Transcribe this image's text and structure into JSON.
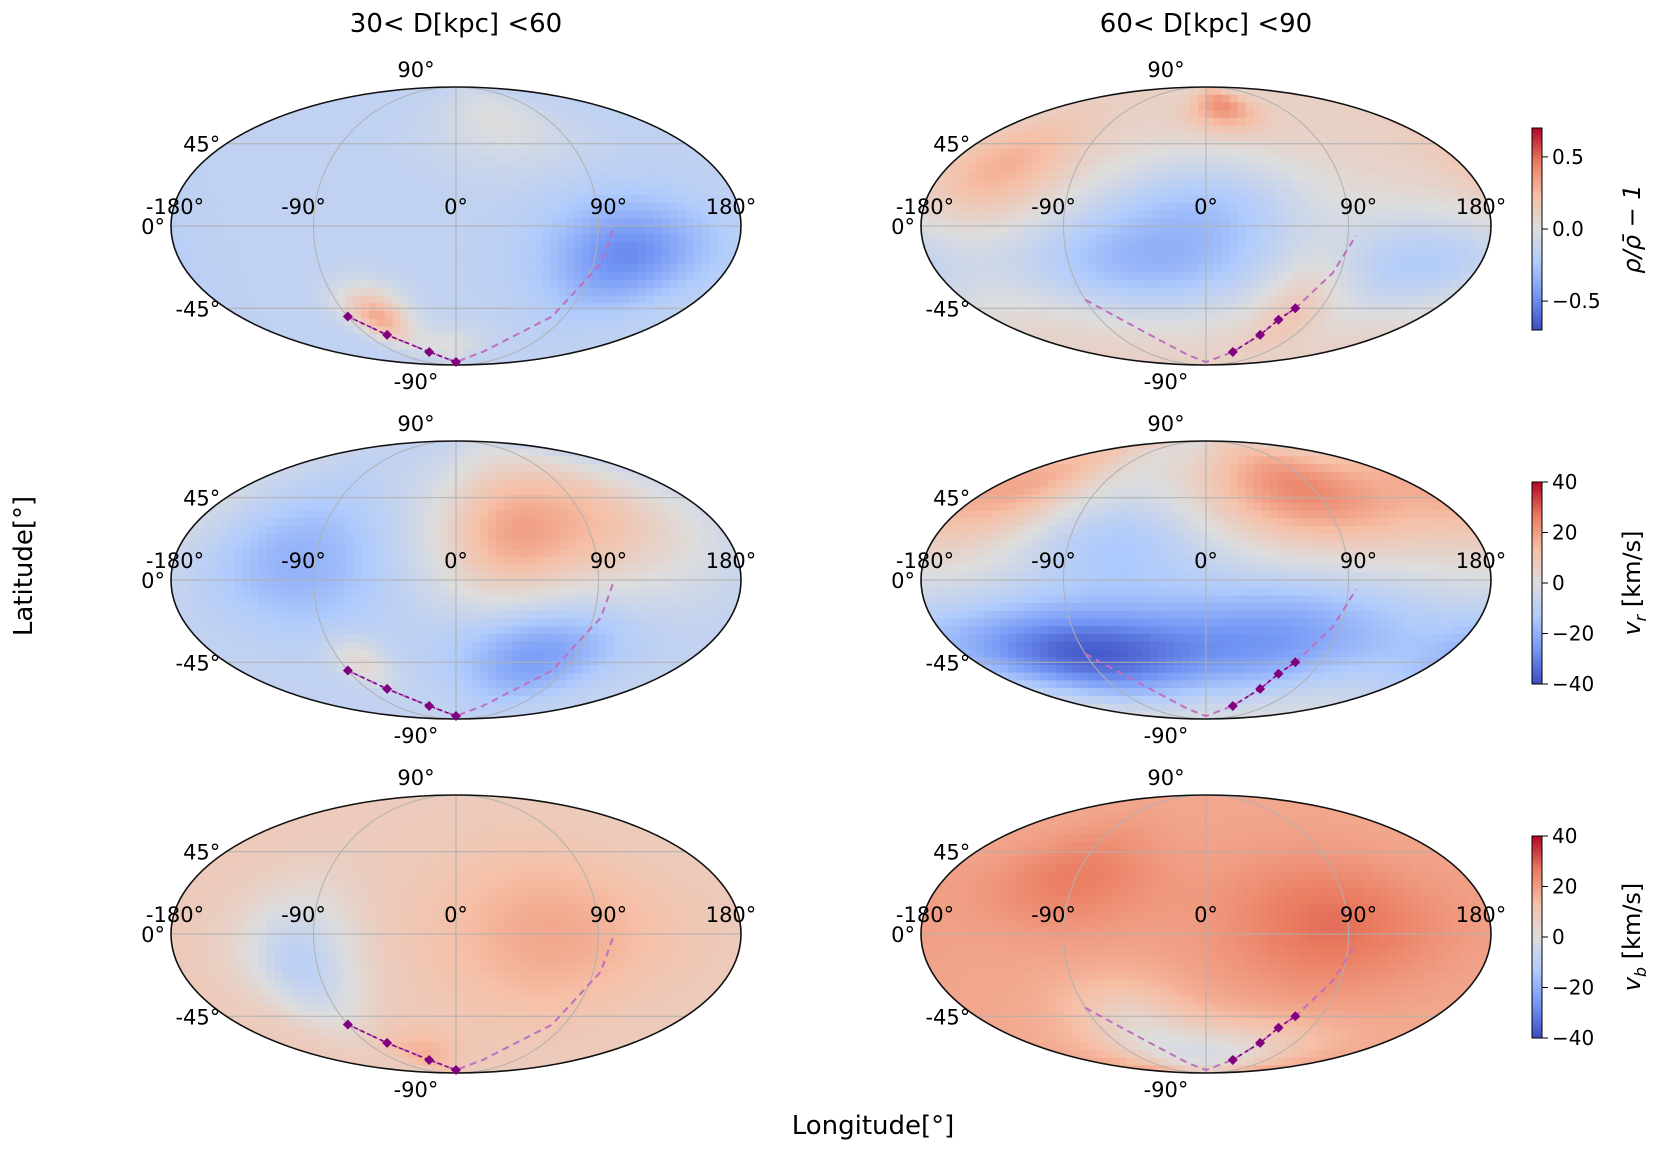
{
  "figure": {
    "xlabel": "Longitude[$^\\circ$]",
    "xlabel_text": "Longitude[°]",
    "ylabel_text": "Latitude[°]",
    "column_titles": [
      "30< D[kpc] <60",
      "60< D[kpc] <90"
    ]
  },
  "colors": {
    "cmap": [
      "#3b4cc0",
      "#7396f5",
      "#b0cbfc",
      "#dddddd",
      "#f6bfa6",
      "#ea7b60",
      "#b40426"
    ],
    "track": "#800080",
    "track_dashed": "#bf6fbf",
    "grid": "#b0b0b0"
  },
  "chart_data": [
    {
      "type": "heatmap",
      "projection": "mollweide",
      "row": 0,
      "col": 0,
      "quantity": "density contrast",
      "vmin": -0.7,
      "vmax": 0.7,
      "lon_ticks": [
        "-180°",
        "-90°",
        "0°",
        "90°",
        "180°"
      ],
      "lat_ticks": [
        "90°",
        "45°",
        "0°",
        "-45°",
        "-90°"
      ],
      "background": -0.15,
      "blobs": [
        {
          "lon": 110,
          "lat": -15,
          "sig_lon": 35,
          "sig_lat": 20,
          "amp": -0.35
        },
        {
          "lon": -65,
          "lat": -50,
          "sig_lon": 18,
          "sig_lat": 12,
          "amp": 0.45
        },
        {
          "lon": -10,
          "lat": -70,
          "sig_lon": 30,
          "sig_lat": 10,
          "amp": 0.15
        },
        {
          "lon": 40,
          "lat": 60,
          "sig_lon": 40,
          "sig_lat": 20,
          "amp": 0.15
        }
      ],
      "track": {
        "lon": [
          -90,
          -70,
          -40,
          0
        ],
        "lat": [
          -50,
          -62,
          -75,
          -85
        ]
      },
      "track_dashed": {
        "lon": [
          -90,
          -70,
          -40,
          0,
          40,
          80,
          95,
          100
        ],
        "lat": [
          -50,
          -62,
          -75,
          -85,
          -75,
          -50,
          -20,
          0
        ]
      }
    },
    {
      "type": "heatmap",
      "projection": "mollweide",
      "row": 0,
      "col": 1,
      "quantity": "density contrast",
      "vmin": -0.7,
      "vmax": 0.7,
      "lon_ticks": [
        "-180°",
        "-90°",
        "0°",
        "90°",
        "180°"
      ],
      "lat_ticks": [
        "90°",
        "45°",
        "0°",
        "-45°",
        "-90°"
      ],
      "background": 0.1,
      "blobs": [
        {
          "lon": -40,
          "lat": -20,
          "sig_lon": 70,
          "sig_lat": 22,
          "amp": -0.4
        },
        {
          "lon": 140,
          "lat": -20,
          "sig_lon": 40,
          "sig_lat": 20,
          "amp": -0.3
        },
        {
          "lon": 0,
          "lat": 15,
          "sig_lon": 50,
          "sig_lat": 20,
          "amp": -0.25
        },
        {
          "lon": 20,
          "lat": 70,
          "sig_lon": 25,
          "sig_lat": 12,
          "amp": 0.3
        },
        {
          "lon": -140,
          "lat": 30,
          "sig_lon": 30,
          "sig_lat": 20,
          "amp": 0.2
        },
        {
          "lon": 70,
          "lat": -40,
          "sig_lon": 20,
          "sig_lat": 20,
          "amp": 0.15
        }
      ],
      "track": {
        "lon": [
          40,
          55,
          62,
          70
        ],
        "lat": [
          -75,
          -62,
          -52,
          -45
        ]
      },
      "track_dashed": {
        "lon": [
          -90,
          -60,
          -30,
          0,
          40,
          55,
          62,
          70,
          85,
          95
        ],
        "lat": [
          -40,
          -60,
          -78,
          -85,
          -75,
          -62,
          -52,
          -45,
          -25,
          -5
        ]
      }
    },
    {
      "type": "heatmap",
      "projection": "mollweide",
      "row": 1,
      "col": 0,
      "quantity": "radial velocity",
      "vmin": -40,
      "vmax": 40,
      "lon_ticks": [
        "-180°",
        "-90°",
        "0°",
        "90°",
        "180°"
      ],
      "lat_ticks": [
        "90°",
        "45°",
        "0°",
        "-45°",
        "-90°"
      ],
      "background": -8,
      "blobs": [
        {
          "lon": 80,
          "lat": 35,
          "sig_lon": 60,
          "sig_lat": 30,
          "amp": 22
        },
        {
          "lon": 30,
          "lat": 15,
          "sig_lon": 30,
          "sig_lat": 25,
          "amp": 12
        },
        {
          "lon": 60,
          "lat": -40,
          "sig_lon": 40,
          "sig_lat": 20,
          "amp": -18
        },
        {
          "lon": -100,
          "lat": 10,
          "sig_lon": 40,
          "sig_lat": 25,
          "amp": -12
        },
        {
          "lon": -75,
          "lat": -45,
          "sig_lon": 15,
          "sig_lat": 10,
          "amp": 12
        }
      ],
      "track": {
        "lon": [
          -90,
          -70,
          -40,
          0
        ],
        "lat": [
          -50,
          -62,
          -75,
          -85
        ]
      },
      "track_dashed": {
        "lon": [
          -90,
          -70,
          -40,
          0,
          40,
          80,
          95,
          100
        ],
        "lat": [
          -50,
          -62,
          -75,
          -85,
          -75,
          -50,
          -20,
          0
        ]
      }
    },
    {
      "type": "heatmap",
      "projection": "mollweide",
      "row": 1,
      "col": 1,
      "quantity": "radial velocity",
      "vmin": -40,
      "vmax": 40,
      "lon_ticks": [
        "-180°",
        "-90°",
        "0°",
        "90°",
        "180°"
      ],
      "lat_ticks": [
        "90°",
        "45°",
        "0°",
        "-45°",
        "-90°"
      ],
      "background": 0,
      "blobs": [
        {
          "lon": -90,
          "lat": -40,
          "sig_lon": 70,
          "sig_lat": 20,
          "amp": -36
        },
        {
          "lon": 60,
          "lat": -30,
          "sig_lon": 60,
          "sig_lat": 25,
          "amp": -22
        },
        {
          "lon": -60,
          "lat": 20,
          "sig_lon": 50,
          "sig_lat": 20,
          "amp": -14
        },
        {
          "lon": 80,
          "lat": 50,
          "sig_lon": 60,
          "sig_lat": 25,
          "amp": 24
        },
        {
          "lon": -150,
          "lat": 50,
          "sig_lon": 40,
          "sig_lat": 25,
          "amp": 16
        }
      ],
      "track": {
        "lon": [
          40,
          55,
          62,
          70
        ],
        "lat": [
          -75,
          -62,
          -52,
          -45
        ]
      },
      "track_dashed": {
        "lon": [
          -90,
          -60,
          -30,
          0,
          40,
          55,
          62,
          70,
          85,
          95
        ],
        "lat": [
          -40,
          -60,
          -78,
          -85,
          -75,
          -62,
          -52,
          -45,
          -25,
          -5
        ]
      }
    },
    {
      "type": "heatmap",
      "projection": "mollweide",
      "row": 2,
      "col": 0,
      "quantity": "latitudinal velocity",
      "vmin": -40,
      "vmax": 40,
      "lon_ticks": [
        "-180°",
        "-90°",
        "0°",
        "90°",
        "180°"
      ],
      "lat_ticks": [
        "90°",
        "45°",
        "0°",
        "-45°",
        "-90°"
      ],
      "background": 8,
      "blobs": [
        {
          "lon": 60,
          "lat": 0,
          "sig_lon": 50,
          "sig_lat": 30,
          "amp": 10
        },
        {
          "lon": -100,
          "lat": -15,
          "sig_lon": 25,
          "sig_lat": 25,
          "amp": -18
        },
        {
          "lon": -40,
          "lat": -70,
          "sig_lon": 30,
          "sig_lat": 12,
          "amp": 8
        }
      ],
      "track": {
        "lon": [
          -90,
          -70,
          -40,
          0
        ],
        "lat": [
          -50,
          -62,
          -75,
          -85
        ]
      },
      "track_dashed": {
        "lon": [
          -90,
          -70,
          -40,
          0,
          40,
          80,
          95,
          100
        ],
        "lat": [
          -50,
          -62,
          -75,
          -85,
          -75,
          -50,
          -20,
          0
        ]
      }
    },
    {
      "type": "heatmap",
      "projection": "mollweide",
      "row": 2,
      "col": 1,
      "quantity": "latitudinal velocity",
      "vmin": -40,
      "vmax": 40,
      "lon_ticks": [
        "-180°",
        "-90°",
        "0°",
        "90°",
        "180°"
      ],
      "lat_ticks": [
        "90°",
        "45°",
        "0°",
        "-45°",
        "-90°"
      ],
      "background": 18,
      "blobs": [
        {
          "lon": 80,
          "lat": 5,
          "sig_lon": 50,
          "sig_lat": 25,
          "amp": 10
        },
        {
          "lon": -90,
          "lat": 30,
          "sig_lon": 40,
          "sig_lat": 20,
          "amp": 8
        },
        {
          "lon": 0,
          "lat": -70,
          "sig_lon": 70,
          "sig_lat": 15,
          "amp": -20
        },
        {
          "lon": -60,
          "lat": -45,
          "sig_lon": 30,
          "sig_lat": 15,
          "amp": -10
        }
      ],
      "track": {
        "lon": [
          40,
          55,
          62,
          70
        ],
        "lat": [
          -75,
          -62,
          -52,
          -45
        ]
      },
      "track_dashed": {
        "lon": [
          -90,
          -60,
          -30,
          0,
          40,
          55,
          62,
          70,
          85,
          95
        ],
        "lat": [
          -40,
          -60,
          -78,
          -85,
          -75,
          -62,
          -52,
          -45,
          -25,
          -5
        ]
      }
    }
  ],
  "colorbars": [
    {
      "row": 0,
      "label": "ρ/ρ̄ − 1",
      "vmin": -0.7,
      "vmax": 0.7,
      "ticks": [
        0.5,
        0.0,
        -0.5
      ],
      "tick_labels": [
        "0.5",
        "0.0",
        "−0.5"
      ]
    },
    {
      "row": 1,
      "label": "v_r [km/s]",
      "label_main": "v",
      "label_sub": "r",
      "label_unit": "[km/s]",
      "vmin": -40,
      "vmax": 40,
      "ticks": [
        40,
        20,
        0,
        -20,
        -40
      ],
      "tick_labels": [
        "40",
        "20",
        "0",
        "−20",
        "−40"
      ]
    },
    {
      "row": 2,
      "label": "v_b [km/s]",
      "label_main": "v",
      "label_sub": "b",
      "label_unit": "[km/s]",
      "vmin": -40,
      "vmax": 40,
      "ticks": [
        40,
        20,
        0,
        -20,
        -40
      ],
      "tick_labels": [
        "40",
        "20",
        "0",
        "−20",
        "−40"
      ]
    }
  ]
}
